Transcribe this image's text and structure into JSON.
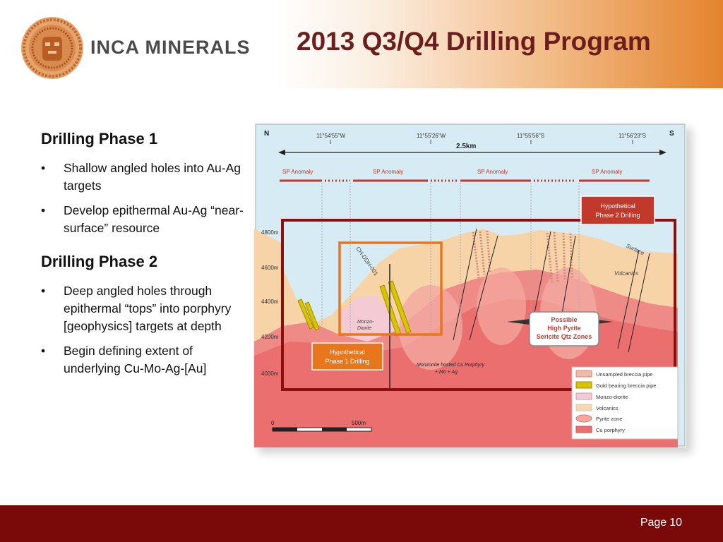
{
  "header": {
    "logo_text": "INCA MINERALS",
    "title": "2013 Q3/Q4 Drilling Program"
  },
  "phase1": {
    "heading": "Drilling Phase 1",
    "bullets": [
      "Shallow angled holes into Au-Ag targets",
      "Develop epithermal Au-Ag “near-surface” resource"
    ]
  },
  "phase2": {
    "heading": "Drilling Phase 2",
    "bullets": [
      "Deep angled holes through epithermal “tops” into porphyry [geophysics] targets at depth",
      "Begin defining extent of underlying Cu-Mo-Ag-[Au]"
    ]
  },
  "figure": {
    "north": "N",
    "south": "S",
    "coords": [
      "11°54'55\"W",
      "11°55'26\"W",
      "11°55'56\"S",
      "11°56'23\"S"
    ],
    "distance": "2.5km",
    "anomaly_label": "SP Anomaly",
    "elevations": [
      "4800m",
      "4600m",
      "4400m",
      "4200m",
      "4000m"
    ],
    "hole_label": "CH-DDH-001",
    "monzo_label": "Monzo-",
    "diorite_label": "Diorite",
    "surface_label": "Surface",
    "volcanics_label": "Volcanics",
    "porphyry_label_1": "Monzonite hosted Cu Porphyry",
    "porphyry_label_2": "+ Mo + Ag",
    "zone_line_1": "Possible",
    "zone_line_2": "High Pyrite",
    "zone_line_3": "Sericite Qtz Zones",
    "phase2_callout_1": "Hypothetical",
    "phase2_callout_2": "Phase 2 Drilling",
    "phase1_callout_1": "Hypothetical",
    "phase1_callout_2": "Phase 1 Drilling",
    "scale_start": "0",
    "scale_end": "500m",
    "legend": [
      {
        "label": "Unsampled breccia pipe",
        "color": "#f2b8a2"
      },
      {
        "label": "Gold bearing breccia pipe",
        "color": "#d8c400"
      },
      {
        "label": "Monzo-diorite",
        "color": "#f4cbd4"
      },
      {
        "label": "Volcanics",
        "color": "#f8d7b0"
      },
      {
        "label": "Pyrite zone",
        "color": "#f3a9a0"
      },
      {
        "label": "Cu porphyry",
        "color": "#ec6f6f"
      }
    ]
  },
  "footer": {
    "page_label": "Page",
    "page_number": "10"
  },
  "colors": {
    "title": "#6b1e1e",
    "footer": "#7a0a0a",
    "phase2_box": "#8b0f0f",
    "phase1_box": "#e8761d",
    "callout": "#c0392b"
  }
}
